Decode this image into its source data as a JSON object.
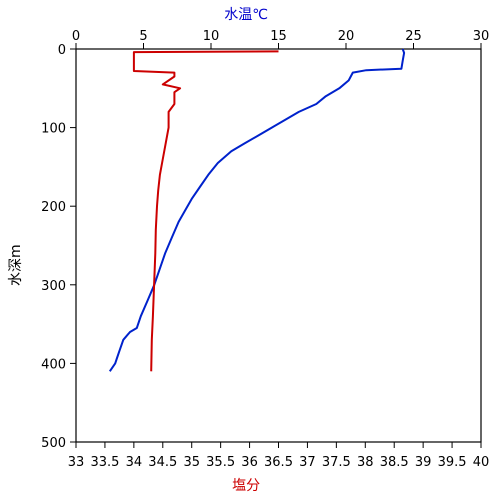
{
  "chart_data": {
    "type": "line",
    "title": "",
    "top_axis": {
      "label": "水温℃",
      "label_color": "#0000cc",
      "range": [
        0,
        30
      ],
      "ticks": [
        0,
        5,
        10,
        15,
        20,
        25,
        30
      ],
      "tick_labels": [
        "0",
        "5",
        "10",
        "15",
        "20",
        "25",
        "30"
      ]
    },
    "bottom_axis": {
      "label": "塩分",
      "label_color": "#cc0000",
      "range": [
        33,
        40
      ],
      "ticks": [
        33,
        33.5,
        34,
        34.5,
        35,
        35.5,
        36,
        36.5,
        37,
        37.5,
        38,
        38.5,
        39,
        39.5,
        40
      ],
      "tick_labels": [
        "33",
        "33.5",
        "34",
        "34.5",
        "35",
        "35.5",
        "36",
        "36.5",
        "37",
        "37.5",
        "38",
        "38.5",
        "39",
        "39.5",
        "40"
      ]
    },
    "y_axis": {
      "label": "水深m",
      "range": [
        0,
        500
      ],
      "inverted": true,
      "ticks": [
        0,
        100,
        200,
        300,
        400,
        500
      ],
      "tick_labels": [
        "0",
        "100",
        "200",
        "300",
        "400",
        "500"
      ]
    },
    "grid": false,
    "series": [
      {
        "axis": "top",
        "color": "#0022cc",
        "points": [
          [
            24.2,
            0
          ],
          [
            24.3,
            5
          ],
          [
            24.2,
            15
          ],
          [
            24.1,
            25
          ],
          [
            21.5,
            27
          ],
          [
            20.5,
            30
          ],
          [
            20.2,
            40
          ],
          [
            19.5,
            50
          ],
          [
            18.5,
            60
          ],
          [
            17.8,
            70
          ],
          [
            16.5,
            80
          ],
          [
            15.5,
            90
          ],
          [
            14.5,
            100
          ],
          [
            13.5,
            110
          ],
          [
            12.5,
            120
          ],
          [
            11.5,
            130
          ],
          [
            10.5,
            145
          ],
          [
            9.8,
            160
          ],
          [
            9.2,
            175
          ],
          [
            8.6,
            190
          ],
          [
            8.1,
            205
          ],
          [
            7.6,
            220
          ],
          [
            7.1,
            240
          ],
          [
            6.6,
            260
          ],
          [
            6.2,
            280
          ],
          [
            5.8,
            300
          ],
          [
            5.3,
            320
          ],
          [
            4.8,
            340
          ],
          [
            4.5,
            355
          ],
          [
            4.0,
            360
          ],
          [
            3.5,
            370
          ],
          [
            3.2,
            385
          ],
          [
            3.0,
            395
          ],
          [
            2.9,
            400
          ],
          [
            2.5,
            410
          ]
        ]
      },
      {
        "axis": "bottom",
        "color": "#cc0000",
        "points": [
          [
            36.5,
            3
          ],
          [
            34.0,
            4
          ],
          [
            34.0,
            28
          ],
          [
            34.7,
            30
          ],
          [
            34.7,
            35
          ],
          [
            34.5,
            45
          ],
          [
            34.8,
            50
          ],
          [
            34.7,
            55
          ],
          [
            34.7,
            70
          ],
          [
            34.6,
            80
          ],
          [
            34.6,
            100
          ],
          [
            34.55,
            120
          ],
          [
            34.5,
            140
          ],
          [
            34.45,
            160
          ],
          [
            34.42,
            180
          ],
          [
            34.4,
            200
          ],
          [
            34.38,
            230
          ],
          [
            34.37,
            260
          ],
          [
            34.35,
            300
          ],
          [
            34.33,
            340
          ],
          [
            34.31,
            370
          ],
          [
            34.3,
            410
          ]
        ]
      }
    ]
  }
}
